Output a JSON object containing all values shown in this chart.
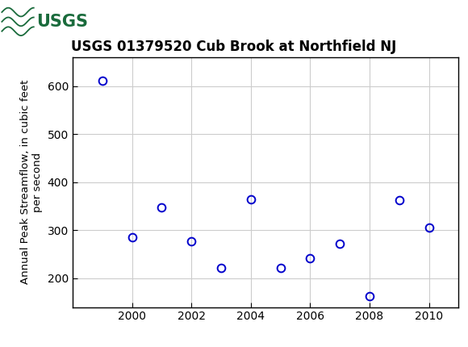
{
  "title": "USGS 01379520 Cub Brook at Northfield NJ",
  "ylabel": "Annual Peak Streamflow, in cubic feet\nper second",
  "years": [
    1999,
    2000,
    2001,
    2002,
    2003,
    2004,
    2005,
    2006,
    2007,
    2008,
    2009,
    2010
  ],
  "flows": [
    612,
    286,
    347,
    277,
    222,
    365,
    222,
    242,
    272,
    163,
    362,
    305
  ],
  "marker_color": "#0000cc",
  "marker_size": 7,
  "xlim": [
    1998.0,
    2011.0
  ],
  "ylim": [
    140,
    660
  ],
  "xticks": [
    2000,
    2002,
    2004,
    2006,
    2008,
    2010
  ],
  "yticks": [
    200,
    300,
    400,
    500,
    600
  ],
  "grid_color": "#cccccc",
  "background_color": "#ffffff",
  "header_color": "#1a6b3c",
  "title_fontsize": 12,
  "axis_label_fontsize": 9.5,
  "tick_fontsize": 10
}
